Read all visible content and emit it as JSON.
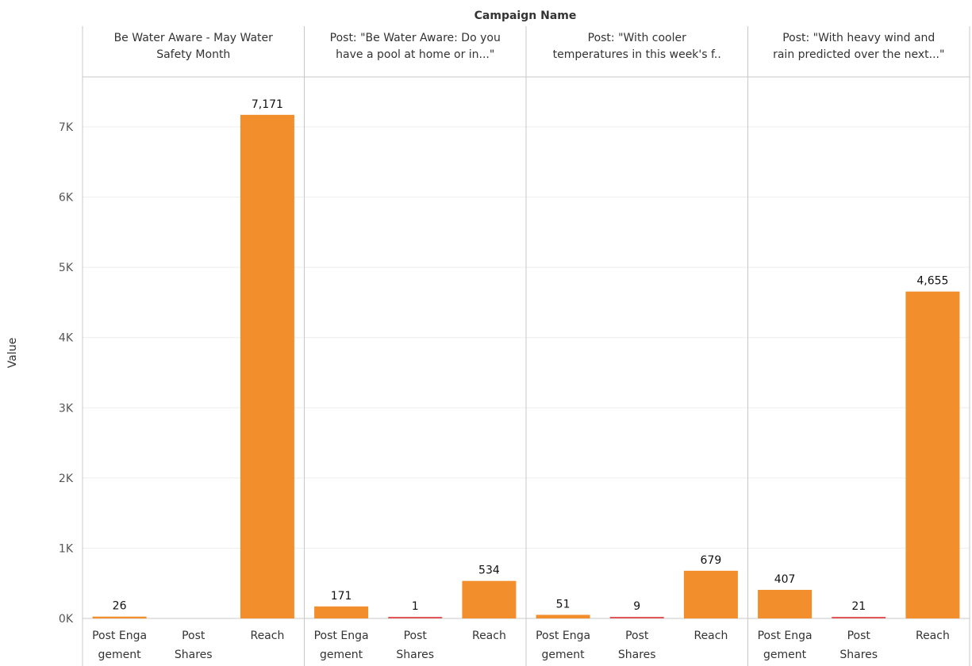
{
  "chart_data": {
    "type": "bar",
    "title": "Campaign Name",
    "ylabel": "Value",
    "ylim": [
      0,
      7700
    ],
    "yticks": [
      {
        "value": 0,
        "label": "0K"
      },
      {
        "value": 1000,
        "label": "1K"
      },
      {
        "value": 2000,
        "label": "2K"
      },
      {
        "value": 3000,
        "label": "3K"
      },
      {
        "value": 4000,
        "label": "4K"
      },
      {
        "value": 5000,
        "label": "5K"
      },
      {
        "value": 6000,
        "label": "6K"
      },
      {
        "value": 7000,
        "label": "7K"
      }
    ],
    "grid": true,
    "categories": [
      {
        "line1": "Post Enga",
        "line2": "gement"
      },
      {
        "line1": "Post",
        "line2": "Shares"
      },
      {
        "line1": "Reach",
        "line2": ""
      }
    ],
    "panels": [
      {
        "header": [
          "Be Water Aware - May Water",
          "Safety Month"
        ],
        "values": [
          26,
          null,
          7171
        ],
        "labels": [
          "26",
          "",
          "7,171"
        ]
      },
      {
        "header": [
          "Post: \"Be Water Aware: Do you",
          "have a pool at home or in...\""
        ],
        "values": [
          171,
          1,
          534
        ],
        "labels": [
          "171",
          "1",
          "534"
        ]
      },
      {
        "header": [
          "Post: \"With cooler",
          "temperatures in this week's f.."
        ],
        "values": [
          51,
          9,
          679
        ],
        "labels": [
          "51",
          "9",
          "679"
        ]
      },
      {
        "header": [
          "Post: \"With heavy wind and",
          "rain predicted over the next...\""
        ],
        "values": [
          407,
          21,
          4655
        ],
        "labels": [
          "407",
          "21",
          "4,655"
        ]
      }
    ],
    "colors": {
      "bar": "#f28e2b",
      "bar_small": "#e15759",
      "grid": "#eeeeee",
      "divider": "#c8c8c8"
    }
  }
}
